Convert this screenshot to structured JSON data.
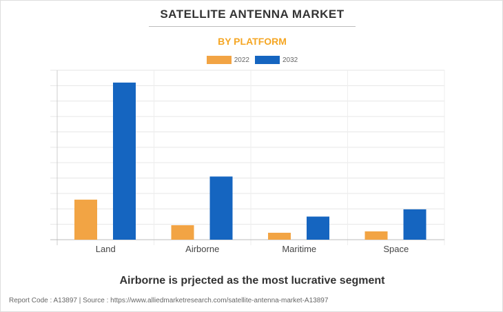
{
  "title": "SATELLITE ANTENNA MARKET",
  "subtitle": "BY PLATFORM",
  "headline": "Airborne is prjected as the most lucrative segment",
  "footer": "Report Code : A13897  |  Source : https://www.alliedmarketresearch.com/satellite-antenna-market-A13897",
  "chart_data": {
    "type": "bar",
    "title": "SATELLITE ANTENNA MARKET",
    "subtitle": "BY PLATFORM",
    "categories": [
      "Land",
      "Airborne",
      "Maritime",
      "Space"
    ],
    "series": [
      {
        "name": "2022",
        "color": "#f2a444",
        "values": [
          2.6,
          0.94,
          0.45,
          0.54
        ]
      },
      {
        "name": "2032",
        "color": "#1565c0",
        "values": [
          10.2,
          4.1,
          1.5,
          1.97
        ]
      }
    ],
    "ylim": [
      0,
      11
    ],
    "grid": true,
    "legend": "top-center",
    "xlabel": "",
    "ylabel": ""
  }
}
